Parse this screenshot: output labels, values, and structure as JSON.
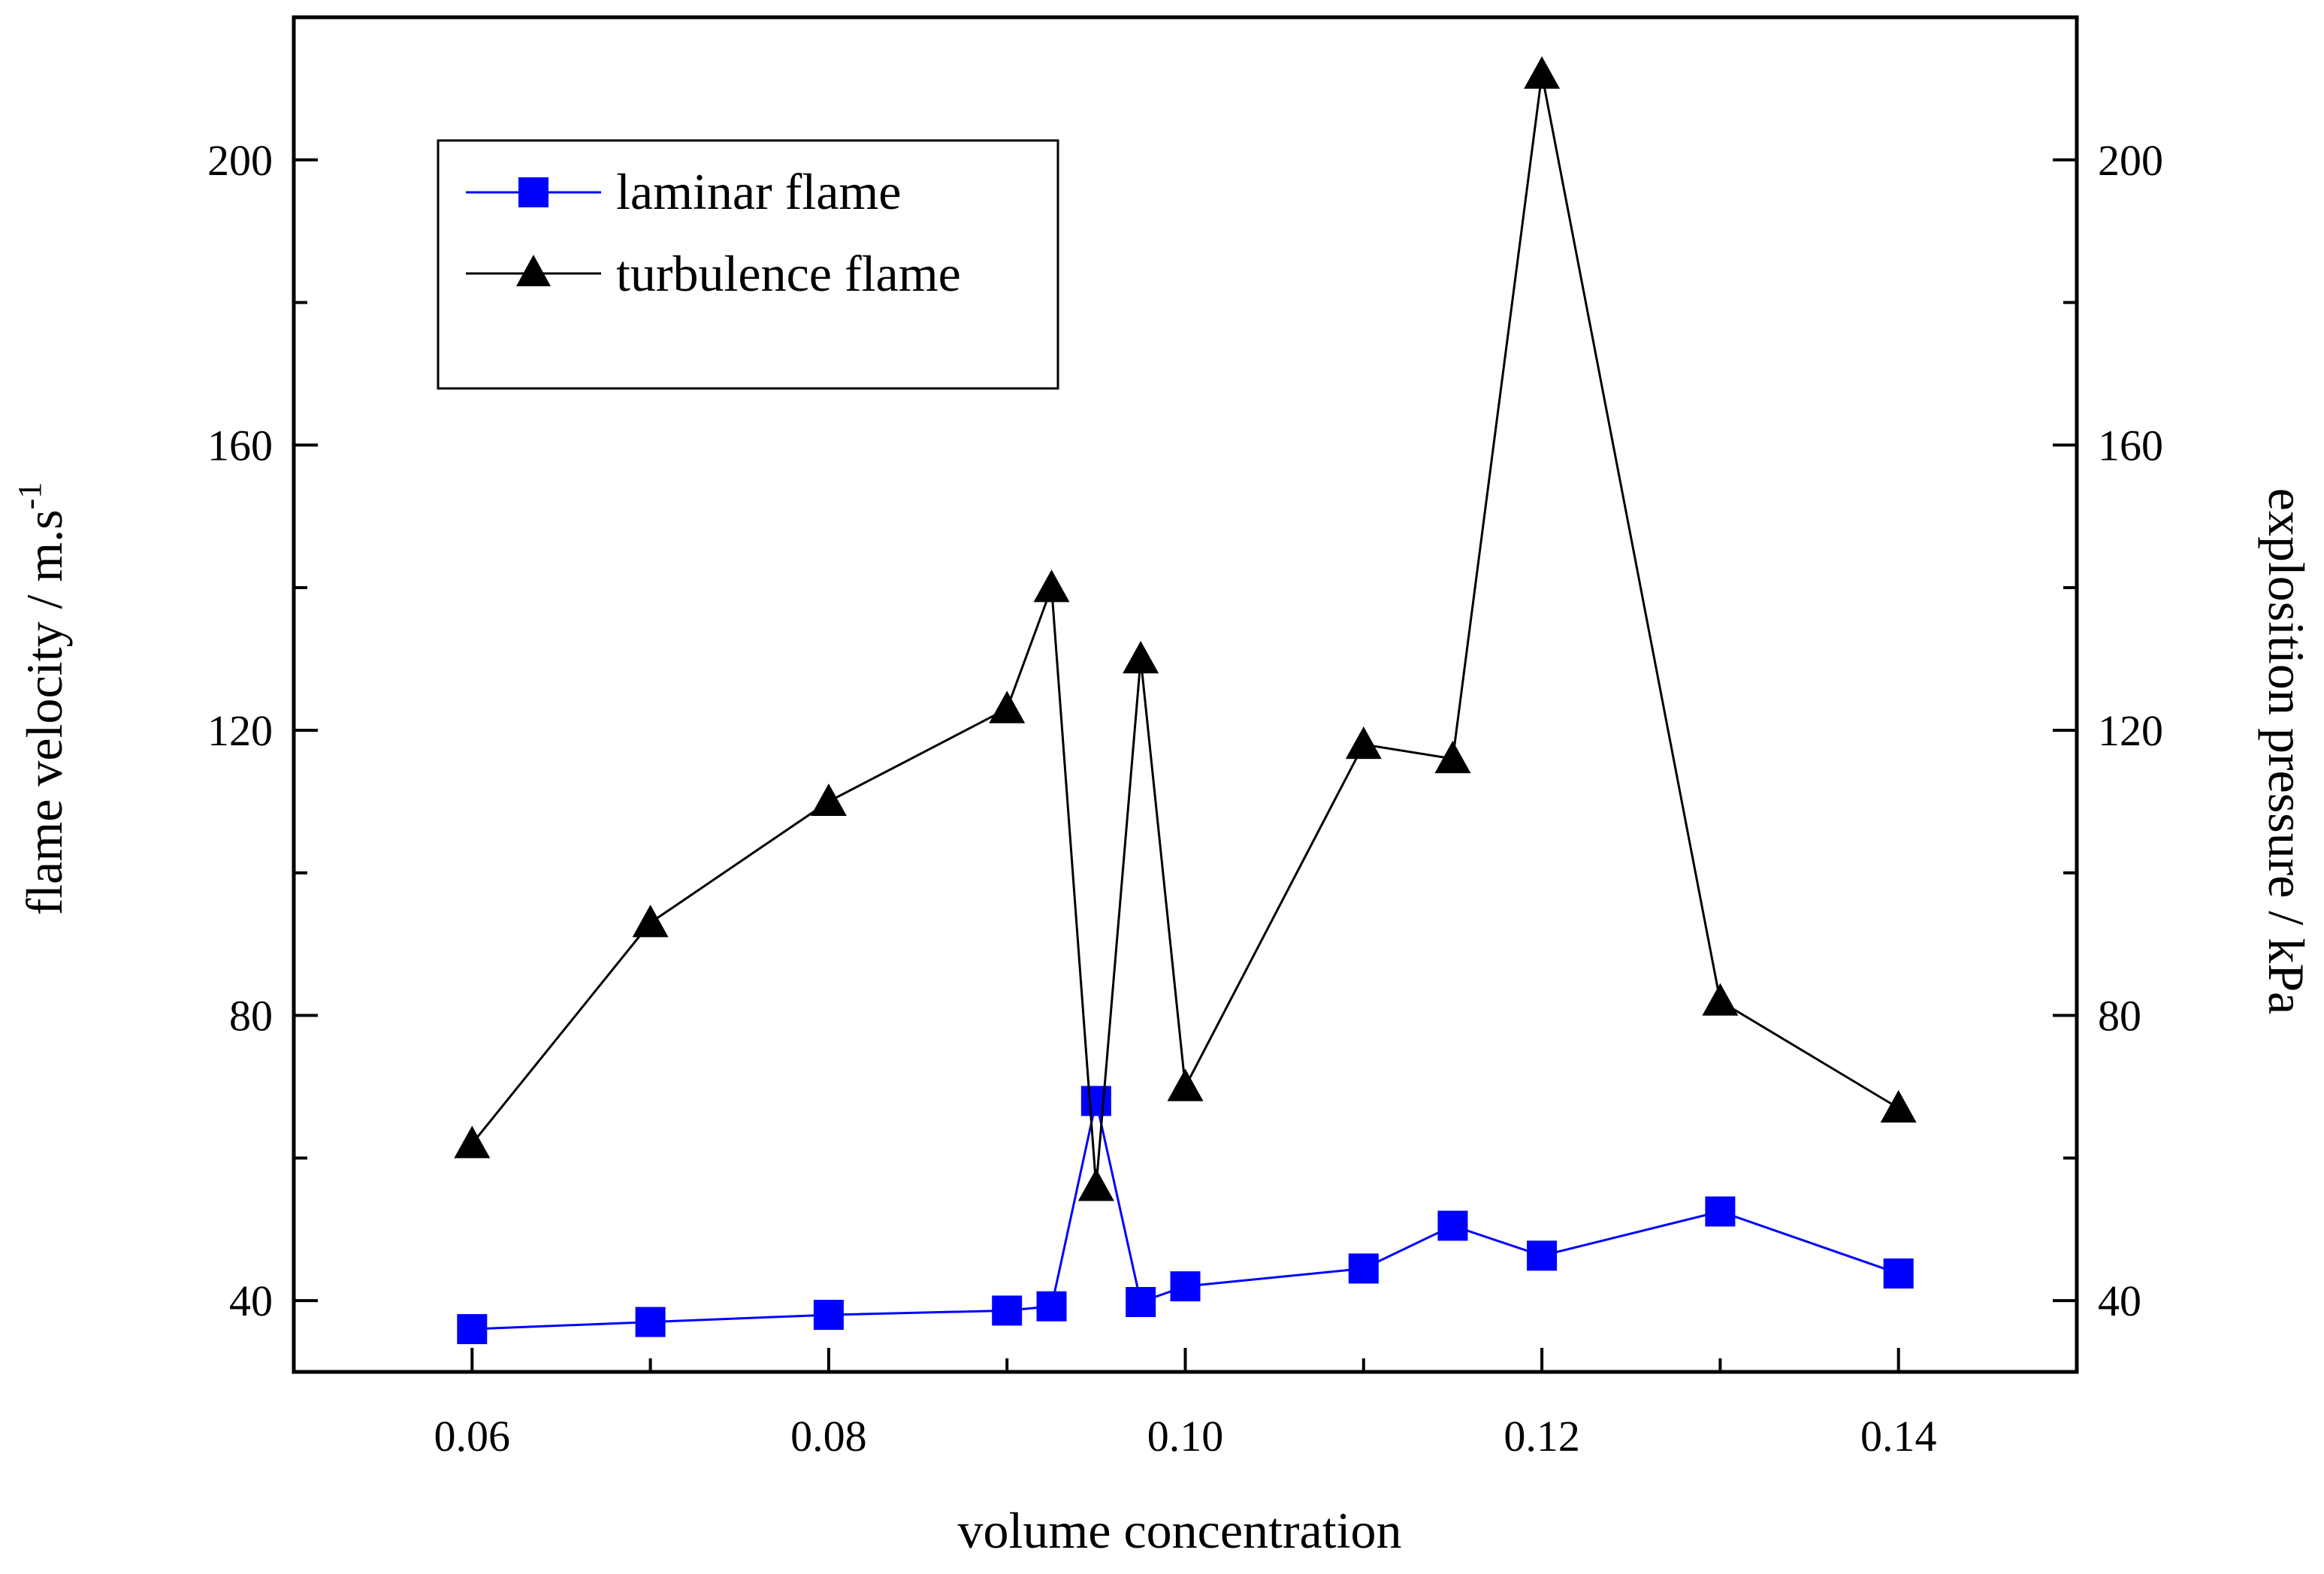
{
  "chart_data": {
    "type": "line",
    "title": "",
    "xlabel": "volume  concentration",
    "ylabel_left": "flame velocity / m.s",
    "ylabel_left_superscript": "-1",
    "ylabel_right": "explosition pressure / kPa",
    "xlim": [
      0.05,
      0.15
    ],
    "ylim": [
      30,
      220
    ],
    "x_ticks": [
      0.06,
      0.08,
      0.1,
      0.12,
      0.14
    ],
    "x_tick_labels": [
      "0.06",
      "0.08",
      "0.10",
      "0.12",
      "0.14"
    ],
    "y_ticks": [
      40,
      80,
      120,
      160,
      200
    ],
    "y_tick_labels": [
      "40",
      "80",
      "120",
      "160",
      "200"
    ],
    "legend_position": "top-left",
    "series": [
      {
        "name": "laminar flame",
        "marker": "square",
        "color": "#0000ff",
        "x": [
          0.06,
          0.07,
          0.08,
          0.09,
          0.0925,
          0.095,
          0.0975,
          0.1,
          0.11,
          0.115,
          0.12,
          0.13,
          0.14
        ],
        "y": [
          36,
          37,
          38,
          38.6,
          39.2,
          68,
          39.8,
          42,
          44.5,
          50.5,
          46.3,
          52.5,
          43.8
        ]
      },
      {
        "name": "turbulence flame",
        "marker": "triangle",
        "color": "#000000",
        "x": [
          0.06,
          0.07,
          0.08,
          0.09,
          0.0925,
          0.095,
          0.0975,
          0.1,
          0.11,
          0.115,
          0.12,
          0.13,
          0.14
        ],
        "y": [
          62,
          93,
          110,
          123,
          140,
          56,
          130,
          70,
          118,
          116,
          212,
          82,
          67
        ]
      }
    ]
  }
}
